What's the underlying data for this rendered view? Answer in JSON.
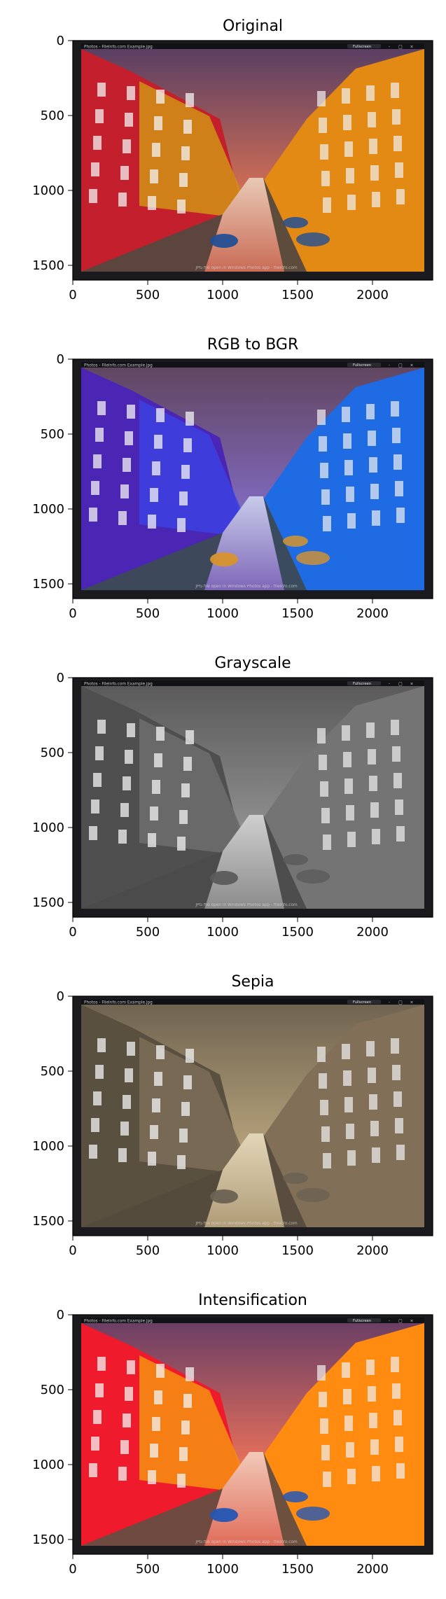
{
  "panels": [
    {
      "title": "Original",
      "xticks": [
        "0",
        "500",
        "1000",
        "1500",
        "2000"
      ],
      "yticks": [
        "0",
        "500",
        "1000",
        "1500"
      ],
      "window_title": "Photos - Filelnfo.com Example.jpg",
      "fullscreen_label": "Fullscreen",
      "footer_text": "JPG file open in Windows Photos app - fileinfo.com",
      "colors": {
        "sky_top": "#5a3f63",
        "sky_mid": "#c96b55",
        "sun": "#ffcc33",
        "left_building": "#c41f2d",
        "left_building2": "#d28b17",
        "right_building": "#e28a14",
        "water": "#e8c9b5",
        "street": "#55483e",
        "boat": "#234f93"
      }
    },
    {
      "title": "RGB to BGR",
      "xticks": [
        "0",
        "500",
        "1000",
        "1500",
        "2000"
      ],
      "yticks": [
        "0",
        "500",
        "1000",
        "1500"
      ],
      "window_title": "Photos - Filelnfo.com Example.jpg",
      "fullscreen_label": "Fullscreen",
      "footer_text": "JPG file open in Windows Photos app - fileinfo.com",
      "colors": {
        "sky_top": "#614660",
        "sky_mid": "#7e67b8",
        "sun": "#1faeff",
        "left_building": "#4b26b4",
        "left_building2": "#3e3fe0",
        "right_building": "#1f6be3",
        "water": "#c7cbea",
        "street": "#3c4a55",
        "boat": "#d6942c"
      }
    },
    {
      "title": "Grayscale",
      "xticks": [
        "0",
        "500",
        "1000",
        "1500",
        "2000"
      ],
      "yticks": [
        "0",
        "500",
        "1000",
        "1500"
      ],
      "window_title": "Photos - Filelnfo.com Example.jpg",
      "fullscreen_label": "Fullscreen",
      "footer_text": "JPG file open in Windows Photos app - fileinfo.com",
      "colors": {
        "sky_top": "#5a5a5a",
        "sky_mid": "#8b8b8b",
        "sun": "#d0d0d0",
        "left_building": "#4f4f4f",
        "left_building2": "#6b6b6b",
        "right_building": "#747474",
        "water": "#cfcfcf",
        "street": "#4b4b4b",
        "boat": "#5b5b5b"
      }
    },
    {
      "title": "Sepia",
      "xticks": [
        "0",
        "500",
        "1000",
        "1500",
        "2000"
      ],
      "yticks": [
        "0",
        "500",
        "1000",
        "1500"
      ],
      "window_title": "Photos - Filelnfo.com Example.jpg",
      "fullscreen_label": "Fullscreen",
      "footer_text": "JPG file open in Windows Photos app - fileinfo.com",
      "colors": {
        "sky_top": "#706451",
        "sky_mid": "#b09d77",
        "sun": "#f0dfb2",
        "left_building": "#5a5040",
        "left_building2": "#7a6c55",
        "right_building": "#816f57",
        "water": "#e3d5b8",
        "street": "#554b3d",
        "boat": "#6a6253"
      }
    },
    {
      "title": "Intensification",
      "xticks": [
        "0",
        "500",
        "1000",
        "1500",
        "2000"
      ],
      "yticks": [
        "0",
        "500",
        "1000",
        "1500"
      ],
      "window_title": "Photos - Filelnfo.com Example.jpg",
      "fullscreen_label": "Fullscreen",
      "footer_text": "JPG file open in Windows Photos app - fileinfo.com",
      "colors": {
        "sky_top": "#6c3f65",
        "sky_mid": "#e06d5a",
        "sun": "#ffdc37",
        "left_building": "#ef1a2b",
        "left_building2": "#f58b13",
        "right_building": "#ff8b10",
        "water": "#f2c9b8",
        "street": "#664d42",
        "boat": "#2456b5"
      }
    }
  ]
}
